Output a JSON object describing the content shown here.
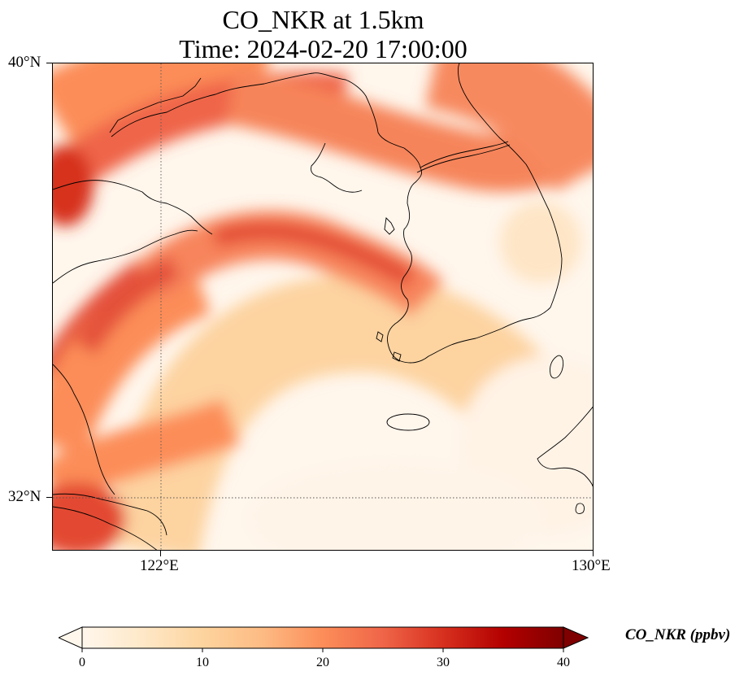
{
  "title": {
    "line1": "CO_NKR at 1.5km",
    "line2": "Time: 2024-02-20 17:00:00"
  },
  "map": {
    "lon_range": [
      120,
      130
    ],
    "lat_range": [
      31,
      40
    ],
    "lon_ticks": [
      {
        "value": 122,
        "label": "122°E"
      },
      {
        "value": 130,
        "label": "130°E"
      }
    ],
    "lat_ticks": [
      {
        "value": 40,
        "label": "40°N"
      },
      {
        "value": 32,
        "label": "32°N"
      }
    ],
    "gridlines": "dotted at 122°E and 32°N"
  },
  "colorbar": {
    "label": "CO_NKR (ppbv)",
    "min": 0,
    "max": 40,
    "ticks": [
      {
        "value": 0,
        "label": "0"
      },
      {
        "value": 10,
        "label": "10"
      },
      {
        "value": 20,
        "label": "20"
      },
      {
        "value": 30,
        "label": "30"
      },
      {
        "value": 40,
        "label": "40"
      }
    ],
    "colormap": "OrRd",
    "stops": [
      "#fff7ec",
      "#fee8c8",
      "#fdd49e",
      "#fdbb84",
      "#fc8d59",
      "#ef6548",
      "#d7301f",
      "#b30000",
      "#7f0000"
    ],
    "extend": "both"
  }
}
